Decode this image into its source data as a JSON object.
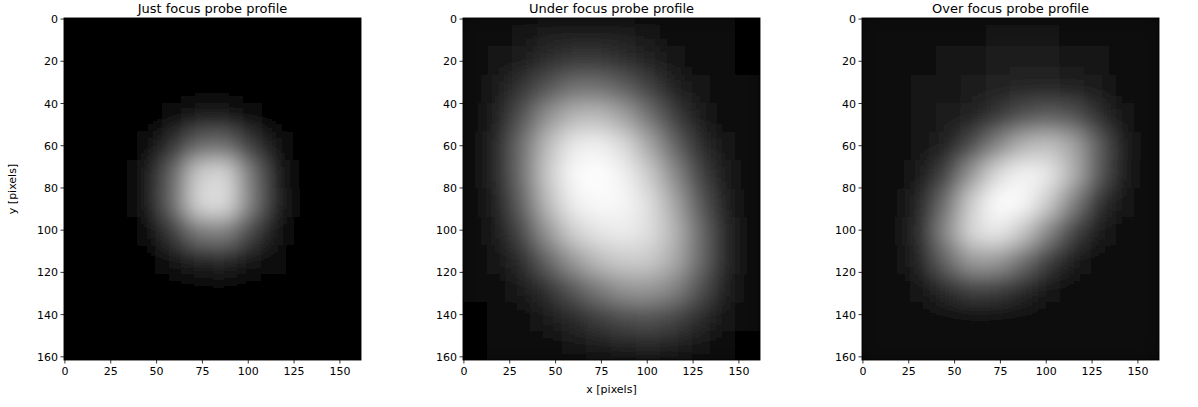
{
  "chart_data": [
    {
      "type": "heatmap",
      "title": "Just focus probe profile",
      "y_label": "y [pixels]",
      "color": "gray",
      "xlim": [
        -0.5,
        161.5
      ],
      "ylim": [
        161.5,
        -0.5
      ],
      "xticks": [
        0,
        25,
        50,
        75,
        100,
        125,
        150
      ],
      "yticks": [
        0,
        20,
        40,
        60,
        80,
        100,
        120,
        140,
        160
      ],
      "cells": [
        [
          0,
          0,
          0,
          0,
          0,
          0,
          0,
          0,
          0,
          0,
          0,
          0
        ],
        [
          0,
          0,
          0,
          0,
          0,
          0,
          0,
          0,
          0,
          0,
          0,
          0
        ],
        [
          0,
          0,
          0,
          0,
          0.01,
          0.02,
          0.02,
          0.01,
          0,
          0,
          0,
          0
        ],
        [
          0,
          0,
          0,
          0.01,
          0.06,
          0.11,
          0.11,
          0.06,
          0.02,
          0,
          0,
          0
        ],
        [
          0,
          0,
          0.01,
          0.06,
          0.21,
          0.41,
          0.43,
          0.24,
          0.07,
          0.01,
          0,
          0
        ],
        [
          0,
          0,
          0.02,
          0.11,
          0.41,
          0.81,
          0.85,
          0.48,
          0.14,
          0.02,
          0,
          0
        ],
        [
          0,
          0,
          0.02,
          0.11,
          0.43,
          0.85,
          0.88,
          0.5,
          0.15,
          0.02,
          0,
          0
        ],
        [
          0,
          0,
          0.01,
          0.06,
          0.24,
          0.48,
          0.5,
          0.28,
          0.08,
          0.01,
          0,
          0
        ],
        [
          0,
          0,
          0,
          0.02,
          0.07,
          0.14,
          0.15,
          0.08,
          0.03,
          0,
          0,
          0
        ],
        [
          0,
          0,
          0,
          0,
          0.01,
          0.02,
          0.02,
          0.01,
          0,
          0,
          0,
          0
        ],
        [
          0,
          0,
          0,
          0,
          0,
          0,
          0,
          0,
          0,
          0,
          0,
          0
        ],
        [
          0,
          0,
          0,
          0,
          0,
          0,
          0,
          0,
          0,
          0,
          0,
          0
        ]
      ]
    },
    {
      "type": "heatmap",
      "title": "Under focus probe profile",
      "x_label": "x [pixels]",
      "color": "gray",
      "xlim": [
        -0.5,
        161.5
      ],
      "ylim": [
        161.5,
        -0.5
      ],
      "xticks": [
        0,
        25,
        50,
        75,
        100,
        125,
        150
      ],
      "yticks": [
        0,
        20,
        40,
        60,
        80,
        100,
        120,
        140,
        160
      ],
      "cells": [
        [
          0.03,
          0.05,
          0.08,
          0.1,
          0.12,
          0.12,
          0.1,
          0.08,
          0.06,
          0.04,
          0.03,
          0.02
        ],
        [
          0.04,
          0.07,
          0.12,
          0.18,
          0.22,
          0.22,
          0.18,
          0.13,
          0.08,
          0.05,
          0.03,
          0.02
        ],
        [
          0.05,
          0.1,
          0.22,
          0.35,
          0.45,
          0.45,
          0.38,
          0.26,
          0.14,
          0.07,
          0.04,
          0.03
        ],
        [
          0.06,
          0.14,
          0.35,
          0.58,
          0.72,
          0.74,
          0.64,
          0.45,
          0.25,
          0.11,
          0.05,
          0.03
        ],
        [
          0.06,
          0.17,
          0.45,
          0.75,
          0.92,
          0.95,
          0.86,
          0.66,
          0.4,
          0.18,
          0.07,
          0.03
        ],
        [
          0.05,
          0.16,
          0.46,
          0.8,
          0.98,
          1,
          0.95,
          0.8,
          0.55,
          0.27,
          0.1,
          0.04
        ],
        [
          0.05,
          0.13,
          0.4,
          0.74,
          0.94,
          0.98,
          0.97,
          0.88,
          0.66,
          0.36,
          0.13,
          0.05
        ],
        [
          0.04,
          0.1,
          0.3,
          0.6,
          0.82,
          0.9,
          0.93,
          0.88,
          0.72,
          0.43,
          0.16,
          0.05
        ],
        [
          0.03,
          0.07,
          0.18,
          0.4,
          0.6,
          0.74,
          0.8,
          0.8,
          0.68,
          0.43,
          0.17,
          0.05
        ],
        [
          0.03,
          0.05,
          0.1,
          0.2,
          0.35,
          0.48,
          0.58,
          0.6,
          0.52,
          0.33,
          0.13,
          0.04
        ],
        [
          0.02,
          0.04,
          0.06,
          0.1,
          0.16,
          0.24,
          0.3,
          0.32,
          0.28,
          0.18,
          0.08,
          0.03
        ],
        [
          0.02,
          0.03,
          0.04,
          0.06,
          0.08,
          0.11,
          0.14,
          0.15,
          0.13,
          0.09,
          0.05,
          0.02
        ]
      ]
    },
    {
      "type": "heatmap",
      "title": "Over focus probe profile",
      "color": "gray",
      "xlim": [
        -0.5,
        161.5
      ],
      "ylim": [
        161.5,
        -0.5
      ],
      "xticks": [
        0,
        25,
        50,
        75,
        100,
        125,
        150
      ],
      "yticks": [
        0,
        20,
        40,
        60,
        80,
        100,
        120,
        140,
        160
      ],
      "cells": [
        [
          0.03,
          0.03,
          0.04,
          0.05,
          0.06,
          0.07,
          0.07,
          0.07,
          0.06,
          0.05,
          0.04,
          0.03
        ],
        [
          0.03,
          0.04,
          0.05,
          0.07,
          0.09,
          0.1,
          0.1,
          0.1,
          0.09,
          0.07,
          0.05,
          0.03
        ],
        [
          0.03,
          0.05,
          0.07,
          0.09,
          0.11,
          0.13,
          0.15,
          0.15,
          0.14,
          0.1,
          0.06,
          0.04
        ],
        [
          0.04,
          0.06,
          0.08,
          0.1,
          0.14,
          0.22,
          0.32,
          0.38,
          0.34,
          0.2,
          0.08,
          0.04
        ],
        [
          0.04,
          0.06,
          0.08,
          0.14,
          0.3,
          0.52,
          0.7,
          0.76,
          0.66,
          0.38,
          0.12,
          0.05
        ],
        [
          0.04,
          0.06,
          0.1,
          0.28,
          0.6,
          0.86,
          0.96,
          0.92,
          0.7,
          0.36,
          0.1,
          0.05
        ],
        [
          0.04,
          0.06,
          0.16,
          0.46,
          0.82,
          1,
          0.98,
          0.8,
          0.5,
          0.2,
          0.07,
          0.04
        ],
        [
          0.04,
          0.06,
          0.2,
          0.56,
          0.86,
          0.92,
          0.78,
          0.52,
          0.26,
          0.1,
          0.05,
          0.04
        ],
        [
          0.04,
          0.06,
          0.16,
          0.42,
          0.62,
          0.6,
          0.44,
          0.24,
          0.1,
          0.05,
          0.05,
          0.04
        ],
        [
          0.04,
          0.05,
          0.08,
          0.18,
          0.26,
          0.24,
          0.16,
          0.08,
          0.04,
          0.04,
          0.05,
          0.04
        ],
        [
          0.04,
          0.05,
          0.05,
          0.05,
          0.05,
          0.04,
          0.03,
          0.03,
          0.04,
          0.05,
          0.05,
          0.04
        ],
        [
          0.04,
          0.05,
          0.06,
          0.06,
          0.06,
          0.06,
          0.06,
          0.06,
          0.06,
          0.05,
          0.05,
          0.04
        ]
      ]
    }
  ]
}
